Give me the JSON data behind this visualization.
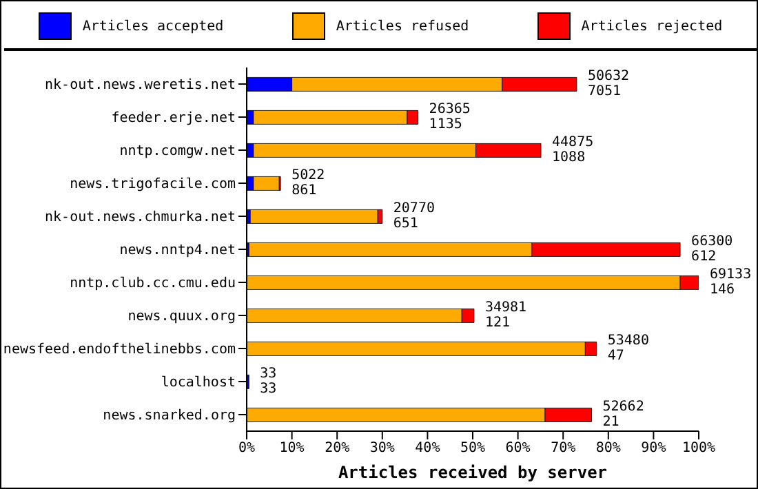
{
  "chart_data": {
    "type": "bar",
    "orientation": "horizontal",
    "stacked": true,
    "xlabel": "Articles received by server",
    "categories": [
      "nk-out.news.weretis.net",
      "feeder.erje.net",
      "nntp.comgw.net",
      "news.trigofacile.com",
      "nk-out.news.chmurka.net",
      "news.nntp4.net",
      "nntp.club.cc.cmu.edu",
      "news.quux.org",
      "newsfeed.endofthelinebbs.com",
      "localhost",
      "news.snarked.org"
    ],
    "series": [
      {
        "name": "Articles accepted",
        "color": "#0000ff",
        "values": [
          10,
          1.5,
          1.5,
          1.5,
          0.8,
          0.5,
          0,
          0,
          0,
          0.5,
          0
        ]
      },
      {
        "name": "Articles refused",
        "color": "#ffaa00",
        "values": [
          46.5,
          34,
          49.2,
          5.7,
          28.2,
          62.6,
          95.9,
          47.6,
          74.9,
          0,
          66
        ]
      },
      {
        "name": "Articles rejected",
        "color": "#ff0000",
        "values": [
          16.5,
          2.4,
          14.4,
          0.3,
          1,
          32.8,
          4.1,
          2.7,
          2.5,
          0,
          10.3
        ]
      }
    ],
    "xlim": [
      0,
      100
    ],
    "xticks": [
      {
        "value": 0,
        "label": "0%"
      },
      {
        "value": 10,
        "label": "10%"
      },
      {
        "value": 20,
        "label": "20%"
      },
      {
        "value": 30,
        "label": "30%"
      },
      {
        "value": 40,
        "label": "40%"
      },
      {
        "value": 50,
        "label": "50%"
      },
      {
        "value": 60,
        "label": "60%"
      },
      {
        "value": 70,
        "label": "70%"
      },
      {
        "value": 80,
        "label": "80%"
      },
      {
        "value": 90,
        "label": "90%"
      },
      {
        "value": 100,
        "label": "100%"
      }
    ],
    "legend": "top",
    "annotations": [
      {
        "text": "50632\n7051",
        "x": 73,
        "y": "nk-out.news.weretis.net"
      },
      {
        "text": "26365\n1135",
        "x": 37.9,
        "y": "feeder.erje.net"
      },
      {
        "text": "44875\n1088",
        "x": 65.1,
        "y": "nntp.comgw.net"
      },
      {
        "text": "5022\n861",
        "x": 7.5,
        "y": "news.trigofacile.com"
      },
      {
        "text": "20770\n651",
        "x": 30,
        "y": "nk-out.news.chmurka.net"
      },
      {
        "text": "66300\n612",
        "x": 95.9,
        "y": "news.nntp4.net"
      },
      {
        "text": "69133\n146",
        "x": 100,
        "y": "nntp.club.cc.cmu.edu"
      },
      {
        "text": "34981\n121",
        "x": 50.3,
        "y": "news.quux.org"
      },
      {
        "text": "53480\n47",
        "x": 77.4,
        "y": "newsfeed.endofthelinebbs.com"
      },
      {
        "text": "33\n33",
        "x": 0.5,
        "y": "localhost"
      },
      {
        "text": "52662\n21",
        "x": 76.3,
        "y": "news.snarked.org"
      }
    ]
  }
}
